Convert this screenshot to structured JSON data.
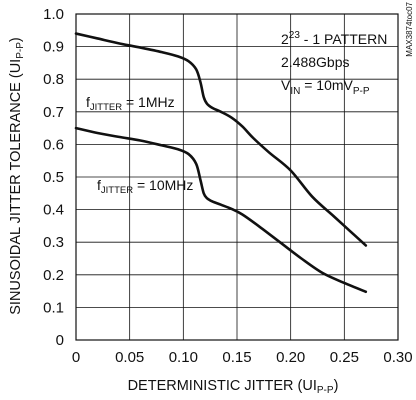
{
  "chart_data": {
    "type": "line",
    "xlabel": "DETERMINISTIC JITTER (UIP-P)",
    "xlabel_parts": {
      "main": "DETERMINISTIC JITTER (UI",
      "sub": "P-P",
      "close": ")"
    },
    "ylabel": "SINUSOIDAL JITTER TOLERANCE (UIP-P)",
    "ylabel_parts": {
      "main": "SINUSOIDAL JITTER TOLERANCE (UI",
      "sub": "P-P",
      "close": ")"
    },
    "xlim": [
      0,
      0.3
    ],
    "ylim": [
      0,
      1.0
    ],
    "grid": true,
    "x_ticks": [
      0,
      0.05,
      0.1,
      0.15,
      0.2,
      0.25,
      0.3
    ],
    "x_tick_labels": [
      "0",
      "0.05",
      "0.10",
      "0.15",
      "0.20",
      "0.25",
      "0.30"
    ],
    "y_ticks": [
      0,
      0.1,
      0.2,
      0.3,
      0.4,
      0.5,
      0.6,
      0.7,
      0.8,
      0.9,
      1.0
    ],
    "y_tick_labels": [
      "0",
      "0.1",
      "0.2",
      "0.3",
      "0.4",
      "0.5",
      "0.6",
      "0.7",
      "0.8",
      "0.9",
      "1.0"
    ],
    "series": [
      {
        "name": "fJITTER = 1MHz",
        "label_parts": {
          "main": "f",
          "sub": "JITTER",
          "rest": " = 1MHz"
        },
        "x": [
          0,
          0.02,
          0.04,
          0.06,
          0.08,
          0.095,
          0.105,
          0.112,
          0.116,
          0.119,
          0.122,
          0.127,
          0.135,
          0.145,
          0.155,
          0.165,
          0.18,
          0.2,
          0.22,
          0.24,
          0.255,
          0.27
        ],
        "y": [
          0.94,
          0.925,
          0.91,
          0.897,
          0.883,
          0.87,
          0.855,
          0.83,
          0.79,
          0.745,
          0.725,
          0.712,
          0.7,
          0.682,
          0.655,
          0.62,
          0.575,
          0.52,
          0.44,
          0.38,
          0.335,
          0.29
        ]
      },
      {
        "name": "fJITTER = 10MHz",
        "label_parts": {
          "main": "f",
          "sub": "JITTER",
          "rest": " = 10MHz"
        },
        "x": [
          0,
          0.02,
          0.04,
          0.06,
          0.08,
          0.095,
          0.105,
          0.112,
          0.116,
          0.119,
          0.122,
          0.127,
          0.135,
          0.145,
          0.155,
          0.17,
          0.19,
          0.21,
          0.23,
          0.25,
          0.27
        ],
        "y": [
          0.65,
          0.635,
          0.623,
          0.612,
          0.597,
          0.585,
          0.57,
          0.54,
          0.49,
          0.45,
          0.435,
          0.425,
          0.415,
          0.402,
          0.385,
          0.35,
          0.3,
          0.25,
          0.205,
          0.175,
          0.148
        ]
      }
    ],
    "legend": {
      "position": "top-right",
      "lines": [
        {
          "main": "2",
          "sup": "23",
          "rest": " - 1 PATTERN"
        },
        {
          "main": "2.488Gbps"
        },
        {
          "main": "V",
          "sub": "IN",
          "rest": " = 10mV",
          "sub2": "P-P"
        }
      ]
    },
    "watermark": "MAX3874toc07"
  }
}
